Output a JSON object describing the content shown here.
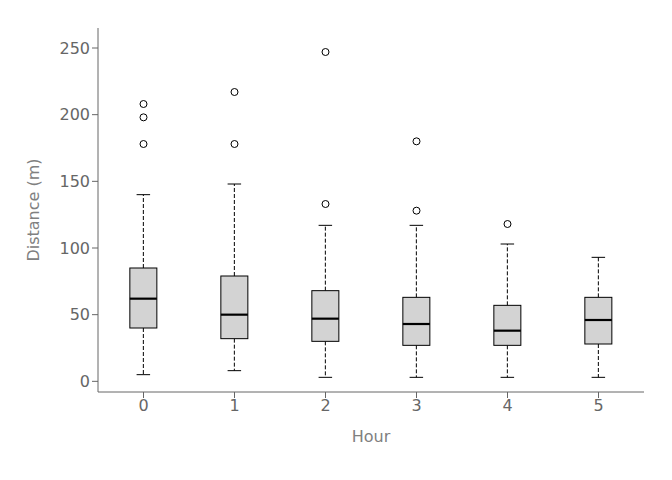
{
  "chart_data": {
    "type": "box",
    "xlabel": "Hour",
    "ylabel": "Distance (m)",
    "categories": [
      "0",
      "1",
      "2",
      "3",
      "4",
      "5"
    ],
    "boxes": [
      {
        "q1": 40,
        "median": 62,
        "q3": 85,
        "whisker_low": 5,
        "whisker_high": 140,
        "outliers": [
          178,
          198,
          208
        ]
      },
      {
        "q1": 32,
        "median": 50,
        "q3": 79,
        "whisker_low": 8,
        "whisker_high": 148,
        "outliers": [
          178,
          217
        ]
      },
      {
        "q1": 30,
        "median": 47,
        "q3": 68,
        "whisker_low": 3,
        "whisker_high": 117,
        "outliers": [
          133,
          247
        ]
      },
      {
        "q1": 27,
        "median": 43,
        "q3": 63,
        "whisker_low": 3,
        "whisker_high": 117,
        "outliers": [
          128,
          180
        ]
      },
      {
        "q1": 27,
        "median": 38,
        "q3": 57,
        "whisker_low": 3,
        "whisker_high": 103,
        "outliers": [
          118
        ]
      },
      {
        "q1": 28,
        "median": 46,
        "q3": 63,
        "whisker_low": 3,
        "whisker_high": 93,
        "outliers": []
      }
    ],
    "ylim": [
      -8,
      265
    ],
    "yticks": [
      0,
      50,
      100,
      150,
      200,
      250
    ],
    "grid": false,
    "color": "#D3D3D3"
  }
}
